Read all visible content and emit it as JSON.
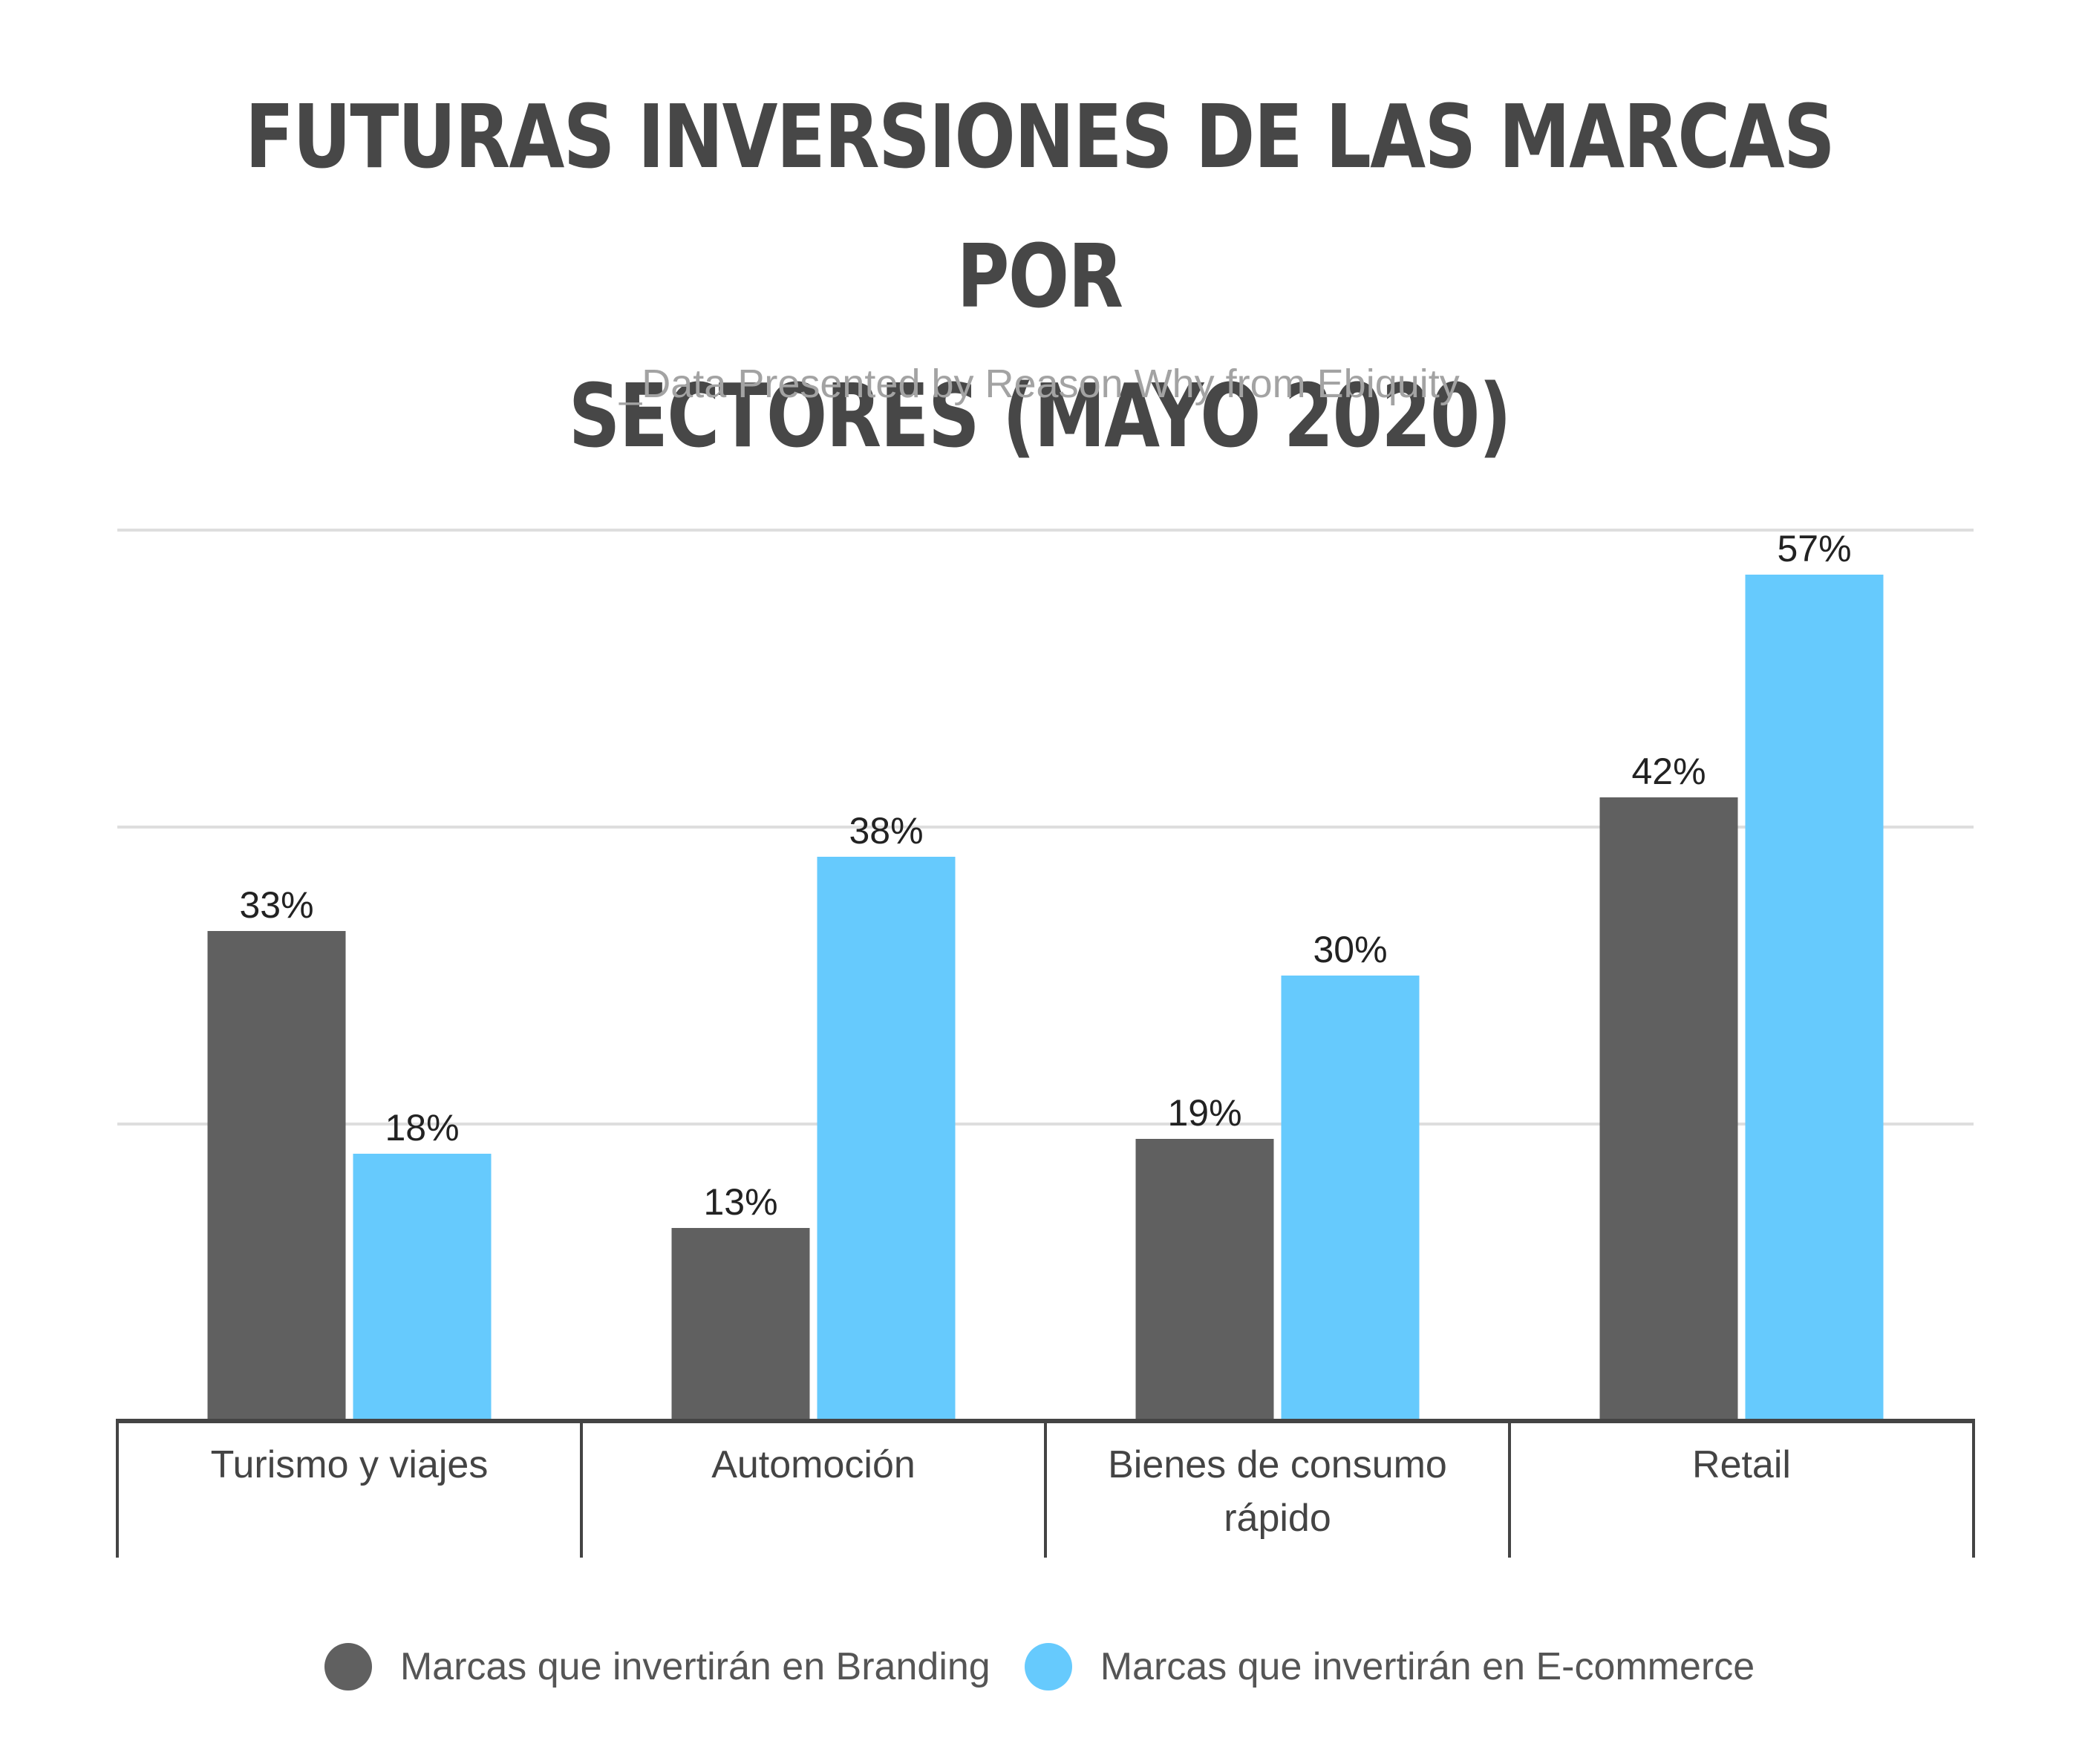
{
  "chart_data": {
    "type": "bar",
    "title_lines": [
      "FUTURAS INVERSIONES DE LAS MARCAS POR",
      "SECTORES (MAYO 2020)"
    ],
    "subtitle": "_Data Presented by Reason Why from Ebiquity",
    "categories": [
      [
        "Turismo y viajes"
      ],
      [
        "Automoción"
      ],
      [
        "Bienes de consumo",
        "rápido"
      ],
      [
        "Retail"
      ]
    ],
    "series": [
      {
        "name": "Marcas que invertirán en Branding",
        "color": "#606060",
        "values": [
          33,
          13,
          19,
          42
        ],
        "labels": [
          "33%",
          "13%",
          "19%",
          "42%"
        ]
      },
      {
        "name": "Marcas que invertirán en E-commerce",
        "color": "#66CAFD",
        "values": [
          18,
          38,
          30,
          57
        ],
        "labels": [
          "18%",
          "38%",
          "30%",
          "57%"
        ]
      }
    ],
    "ylim": [
      0,
      60
    ],
    "grid": true,
    "legend_position": "bottom-center",
    "xlabel": "",
    "ylabel": ""
  }
}
